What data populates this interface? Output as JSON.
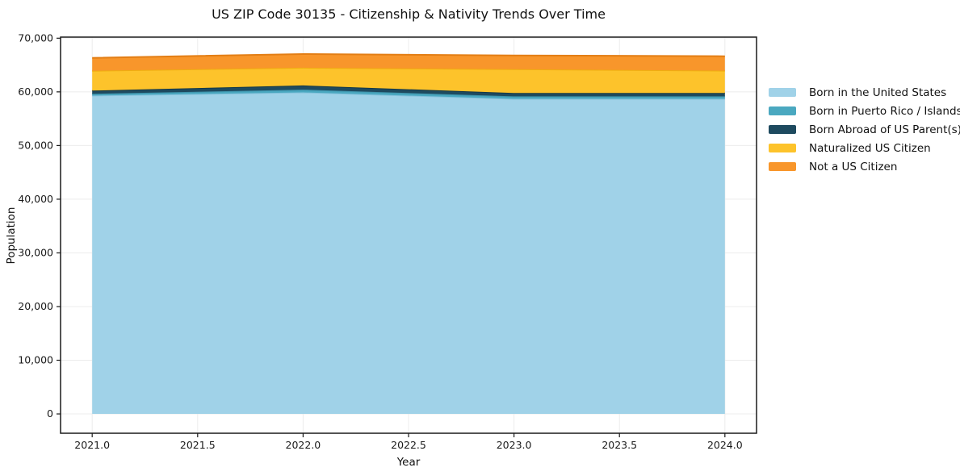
{
  "page": {
    "background": "#ffffff",
    "text_color": "#111111"
  },
  "chart_data": {
    "type": "area",
    "stacked": true,
    "title": "US ZIP Code 30135 - Citizenship & Nativity Trends Over Time",
    "xlabel": "Year",
    "ylabel": "Population",
    "x": [
      2021,
      2022,
      2023,
      2024
    ],
    "series": [
      {
        "name": "Born in the United States",
        "color": "#A0D2E8",
        "edge_color": "#85C2DC",
        "values": [
          59300,
          59900,
          58700,
          58700
        ]
      },
      {
        "name": "Born in Puerto Rico / Islands",
        "color": "#4AA8C0",
        "edge_color": "#3E93AB",
        "values": [
          330,
          520,
          470,
          470
        ]
      },
      {
        "name": "Born Abroad of US Parent(s)",
        "color": "#1E4A5F",
        "edge_color": "#163948",
        "values": [
          600,
          780,
          620,
          620
        ]
      },
      {
        "name": "Naturalized US Citizen",
        "color": "#FDC32B",
        "edge_color": "#EFAD10",
        "values": [
          3700,
          3300,
          4450,
          4150
        ]
      },
      {
        "name": "Not a US Citizen",
        "color": "#F8962B",
        "edge_color": "#E37E15",
        "values": [
          2400,
          2550,
          2550,
          2700
        ]
      }
    ],
    "xlim": [
      2020.85,
      2024.15
    ],
    "ylim": [
      -3600,
      70200
    ],
    "xticks": [
      2021.0,
      2021.5,
      2022.0,
      2022.5,
      2023.0,
      2023.5,
      2024.0
    ],
    "xtick_labels": [
      "2021.0",
      "2021.5",
      "2022.0",
      "2022.5",
      "2023.0",
      "2023.5",
      "2024.0"
    ],
    "yticks": [
      0,
      10000,
      20000,
      30000,
      40000,
      50000,
      60000,
      70000
    ],
    "ytick_labels": [
      "0",
      "10,000",
      "20,000",
      "30,000",
      "40,000",
      "50,000",
      "60,000",
      "70,000"
    ],
    "grid": true,
    "grid_color": "#ececec",
    "spine_color": "#1a1a1a",
    "legend_position": "right-outside"
  }
}
